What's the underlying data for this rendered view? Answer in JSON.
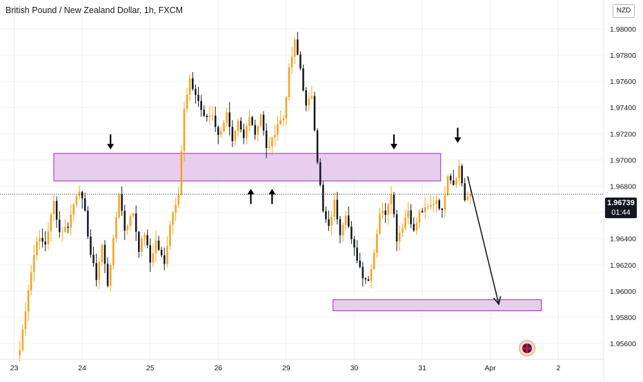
{
  "header": {
    "title": "British Pound / New Zealand Dollar, 1h, FXCM",
    "currency": "NZD"
  },
  "price_tag": {
    "value": "1.96739",
    "countdown": "01:44"
  },
  "colors": {
    "candle_up": "#f7a21b",
    "candle_down": "#131722",
    "zone_fill": "#e9cdef",
    "zone_stroke": "#9c27b0",
    "grid": "#eef0f3",
    "axis_text": "#131722"
  },
  "chart_data": {
    "type": "candlestick",
    "x_ticks": [
      {
        "label": "23",
        "t": 0
      },
      {
        "label": "24",
        "t": 24
      },
      {
        "label": "25",
        "t": 48
      },
      {
        "label": "26",
        "t": 72
      },
      {
        "label": "29",
        "t": 96
      },
      {
        "label": "30",
        "t": 120
      },
      {
        "label": "31",
        "t": 144
      },
      {
        "label": "Apr",
        "t": 168
      },
      {
        "label": "2",
        "t": 192
      }
    ],
    "y_ticks": [
      "1.98000",
      "1.97800",
      "1.97600",
      "1.97400",
      "1.97200",
      "1.97000",
      "1.96800",
      "1.96600",
      "1.96400",
      "1.96200",
      "1.96000",
      "1.95800",
      "1.95600"
    ],
    "ylim": [
      1.9548,
      1.9822
    ],
    "xlim": [
      -5,
      208
    ],
    "current_price": 1.96739,
    "keyframes": [
      [
        2,
        1.9555
      ],
      [
        5,
        1.9602
      ],
      [
        8,
        1.964
      ],
      [
        11,
        1.9636
      ],
      [
        14,
        1.9668
      ],
      [
        16,
        1.9645
      ],
      [
        19,
        1.965
      ],
      [
        22,
        1.9674
      ],
      [
        23,
        1.9678
      ],
      [
        25,
        1.9659
      ],
      [
        27,
        1.9628
      ],
      [
        29,
        1.961
      ],
      [
        31,
        1.9635
      ],
      [
        33,
        1.9605
      ],
      [
        35,
        1.9638
      ],
      [
        37,
        1.9675
      ],
      [
        39,
        1.9647
      ],
      [
        42,
        1.966
      ],
      [
        44,
        1.9632
      ],
      [
        46,
        1.9644
      ],
      [
        48,
        1.9622
      ],
      [
        50,
        1.9638
      ],
      [
        53,
        1.962
      ],
      [
        55,
        1.9652
      ],
      [
        58,
        1.9676
      ],
      [
        60,
        1.9738
      ],
      [
        62,
        1.976
      ],
      [
        65,
        1.9745
      ],
      [
        67,
        1.9732
      ],
      [
        70,
        1.9735
      ],
      [
        72,
        1.9718
      ],
      [
        75,
        1.9735
      ],
      [
        77,
        1.9712
      ],
      [
        79,
        1.9728
      ],
      [
        81,
        1.9716
      ],
      [
        83,
        1.9735
      ],
      [
        85,
        1.972
      ],
      [
        87,
        1.9735
      ],
      [
        89,
        1.9708
      ],
      [
        91,
        1.9715
      ],
      [
        93,
        1.9728
      ],
      [
        95,
        1.9732
      ],
      [
        97,
        1.9768
      ],
      [
        99,
        1.979
      ],
      [
        101,
        1.977
      ],
      [
        103,
        1.974
      ],
      [
        105,
        1.975
      ],
      [
        107,
        1.97
      ],
      [
        109,
        1.966
      ],
      [
        111,
        1.9648
      ],
      [
        113,
        1.9668
      ],
      [
        115,
        1.9645
      ],
      [
        117,
        1.966
      ],
      [
        119,
        1.9638
      ],
      [
        121,
        1.9625
      ],
      [
        123,
        1.9612
      ],
      [
        125,
        1.9608
      ],
      [
        127,
        1.963
      ],
      [
        129,
        1.966
      ],
      [
        131,
        1.966
      ],
      [
        133,
        1.9676
      ],
      [
        135,
        1.964
      ],
      [
        137,
        1.965
      ],
      [
        139,
        1.9662
      ],
      [
        141,
        1.9645
      ],
      [
        143,
        1.966
      ],
      [
        145,
        1.9662
      ],
      [
        147,
        1.9665
      ],
      [
        149,
        1.967
      ],
      [
        151,
        1.966
      ],
      [
        153,
        1.969
      ],
      [
        155,
        1.9682
      ],
      [
        157,
        1.9695
      ],
      [
        159,
        1.967
      ],
      [
        161,
        1.96739
      ]
    ],
    "zones": [
      {
        "t0": 14,
        "t1": 150.5,
        "y0": 1.9684,
        "y1": 1.9705
      },
      {
        "t0": 112.5,
        "t1": 186,
        "y0": 1.9585,
        "y1": 1.95935
      }
    ],
    "arrows": [
      {
        "t": 34,
        "y": 1.9708,
        "dir": "down"
      },
      {
        "t": 83.5,
        "y": 1.9678,
        "dir": "up"
      },
      {
        "t": 91,
        "y": 1.9678,
        "dir": "up"
      },
      {
        "t": 134,
        "y": 1.9708,
        "dir": "down"
      },
      {
        "t": 156.5,
        "y": 1.9713,
        "dir": "down"
      }
    ],
    "projection": {
      "t0": 160,
      "y0": 1.96875,
      "t1": 171,
      "y1": 1.959
    }
  }
}
